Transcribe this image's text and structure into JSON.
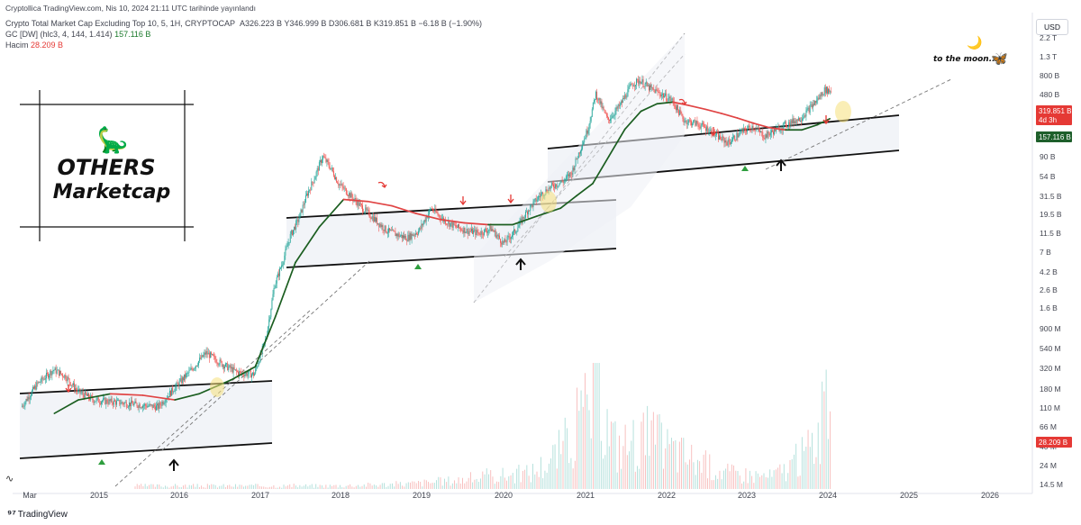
{
  "header": {
    "published": "Cryptollica TradingView.com, Nis 10, 2024 21:11 UTC tarihinde yayınlandı",
    "symbol": "Crypto Total Market Cap Excluding Top 10, 5, 1H, CRYPTOCAP",
    "ohlc": "A326.223 B  Y346.999 B  D306.681 B  K319.851 B  −6.18 B (−1.90%)",
    "indicator_name": "GC [DW] (hlc3, 4, 144, 1.414)",
    "indicator_value": "157.116 B",
    "volume_label": "Hacim",
    "volume_value": "28.209 B"
  },
  "currency": "USD",
  "footer": {
    "logo": "⁹⁷",
    "brand": "TradingView"
  },
  "artwork": {
    "title_line1": "OTHERS",
    "title_line2": "Marketcap",
    "dino": "🦕",
    "moon_text": "to the moon...",
    "moon_icon": "🌙",
    "butterfly_icon": "🦋"
  },
  "price_tags": [
    {
      "text": "319.851 B",
      "sub": "4d 3h",
      "color": "#e53935",
      "value": 319.851
    },
    {
      "text": "157.116 B",
      "color": "#1e5f2b",
      "value": 157.116
    },
    {
      "text": "28.209 B",
      "color": "#e53935",
      "axis": "volume"
    }
  ],
  "colors": {
    "up": "#26a69a",
    "down": "#ef5350",
    "gc_bull": "#1b5e20",
    "gc_bear": "#e04444",
    "up_arrow": "#2e9e3e",
    "down_arrow": "#e53935"
  },
  "chart_data": {
    "type": "line",
    "title": "Crypto Total Market Cap Excluding Top 10",
    "y_scale": "log",
    "y_ticks_price": [
      "2.2 T",
      "1.3 T",
      "800 B",
      "480 B",
      "320 B",
      "190 B",
      "90 B",
      "54 B",
      "31.5 B",
      "19.5 B",
      "11.5 B",
      "7 B",
      "4.2 B",
      "2.6 B",
      "1.6 B",
      "900 M",
      "540 M",
      "320 M",
      "180 M",
      "110 M",
      "66 M",
      "40 M",
      "24 M",
      "14.5 M"
    ],
    "x_ticks": [
      "Mar",
      "2015",
      "2016",
      "2017",
      "2018",
      "2019",
      "2020",
      "2021",
      "2022",
      "2023",
      "2024",
      "2025",
      "2026"
    ],
    "xlim": [
      2014.17,
      2026.5
    ],
    "series": [
      {
        "x": [
          2014.2,
          2014.4,
          2014.6,
          2014.75,
          2014.9,
          2015.1,
          2015.3,
          2015.5,
          2015.7,
          2015.9,
          2016.1,
          2016.3,
          2016.5,
          2016.7,
          2016.9,
          2017.1,
          2017.25,
          2017.35,
          2017.45,
          2017.55,
          2017.65,
          2017.75,
          2017.85,
          2017.95,
          2018.05,
          2018.15,
          2018.3,
          2018.45,
          2018.6,
          2018.75,
          2018.9,
          2019.0,
          2019.15,
          2019.3,
          2019.45,
          2019.6,
          2019.75,
          2019.9,
          2020.05,
          2020.2,
          2020.35,
          2020.5,
          2020.65,
          2020.8,
          2020.95,
          2021.05,
          2021.15,
          2021.25,
          2021.35,
          2021.5,
          2021.65,
          2021.8,
          2021.9,
          2022.0,
          2022.15,
          2022.3,
          2022.45,
          2022.6,
          2022.75,
          2022.9,
          2023.0,
          2023.15,
          2023.3,
          2023.45,
          2023.6,
          2023.75,
          2023.9,
          2024.0,
          2024.1,
          2024.2,
          2024.27
        ],
        "y": [
          100,
          180,
          260,
          220,
          150,
          120,
          115,
          110,
          105,
          100,
          160,
          250,
          400,
          300,
          240,
          230,
          600,
          2200,
          4000,
          8000,
          12000,
          22000,
          35000,
          60000,
          45000,
          30000,
          22000,
          16000,
          12000,
          9000,
          8000,
          7500,
          9000,
          16000,
          12000,
          10000,
          9000,
          8500,
          9500,
          6500,
          9000,
          15000,
          22000,
          28000,
          32000,
          40000,
          70000,
          120000,
          300000,
          150000,
          220000,
          380000,
          420000,
          350000,
          300000,
          250000,
          150000,
          140000,
          120000,
          95000,
          85000,
          110000,
          130000,
          100000,
          120000,
          140000,
          160000,
          200000,
          250000,
          330000,
          320000
        ]
      },
      {
        "name": "GC [DW] (hlc3, 4, 144, 1.414)",
        "x": [
          2014.6,
          2014.9,
          2015.3,
          2015.7,
          2016.1,
          2016.4,
          2016.8,
          2017.1,
          2017.35,
          2017.6,
          2017.9,
          2018.2,
          2018.5,
          2018.8,
          2019.1,
          2019.4,
          2019.7,
          2020.0,
          2020.3,
          2020.6,
          2020.9,
          2021.1,
          2021.3,
          2021.5,
          2021.7,
          2021.9,
          2022.1,
          2022.3,
          2022.5,
          2022.7,
          2022.9,
          2023.1,
          2023.3,
          2023.5,
          2023.7,
          2023.9,
          2024.1,
          2024.25
        ],
        "y": [
          85,
          120,
          140,
          135,
          120,
          140,
          200,
          280,
          1000,
          4000,
          10000,
          20000,
          19000,
          17000,
          14000,
          12000,
          11000,
          10500,
          10500,
          13000,
          16000,
          22000,
          30000,
          60000,
          120000,
          190000,
          230000,
          240000,
          220000,
          200000,
          180000,
          160000,
          140000,
          125000,
          118000,
          118000,
          135000,
          157000
        ]
      },
      {
        "name": "Hacim",
        "type": "bar",
        "x": [
          2018.0,
          2019.0,
          2020.0,
          2020.5,
          2021.1,
          2021.35,
          2021.6,
          2022.0,
          2022.5,
          2023.0,
          2023.5,
          2024.0,
          2024.2
        ],
        "y": [
          0.3,
          0.5,
          1.2,
          1.5,
          6,
          9,
          4,
          5,
          3,
          1.5,
          1.2,
          4,
          7
        ]
      }
    ]
  }
}
